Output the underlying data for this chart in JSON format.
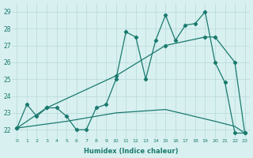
{
  "line1_x": [
    0,
    1,
    2,
    3,
    4,
    5,
    6,
    7,
    8,
    9,
    10,
    11,
    12,
    13,
    14,
    15,
    16,
    17,
    18,
    19,
    20,
    21,
    22,
    23
  ],
  "line1_y": [
    22.1,
    23.5,
    22.8,
    23.3,
    23.3,
    22.8,
    22.0,
    22.0,
    23.3,
    23.5,
    25.0,
    27.8,
    27.5,
    25.0,
    27.3,
    28.8,
    27.3,
    28.2,
    28.3,
    29.0,
    26.0,
    24.8,
    21.8,
    21.8
  ],
  "line2_x": [
    0,
    3,
    10,
    15,
    19,
    20,
    22,
    23
  ],
  "line2_y": [
    22.1,
    23.3,
    25.2,
    27.0,
    27.5,
    27.5,
    26.0,
    21.8
  ],
  "line3_x": [
    0,
    5,
    10,
    15,
    20,
    22,
    23
  ],
  "line3_y": [
    22.1,
    22.5,
    23.0,
    23.2,
    22.5,
    22.2,
    21.8
  ],
  "line_color": "#1a7a6e",
  "bg_color": "#d8f0f0",
  "grid_color": "#b8d8d8",
  "xlabel": "Humidex (Indice chaleur)",
  "ylim": [
    21.5,
    29.5
  ],
  "xlim": [
    -0.5,
    23.5
  ],
  "yticks": [
    22,
    23,
    24,
    25,
    26,
    27,
    28,
    29
  ],
  "xticks": [
    0,
    1,
    2,
    3,
    4,
    5,
    6,
    7,
    8,
    9,
    10,
    11,
    12,
    13,
    14,
    15,
    16,
    17,
    18,
    19,
    20,
    21,
    22,
    23
  ]
}
